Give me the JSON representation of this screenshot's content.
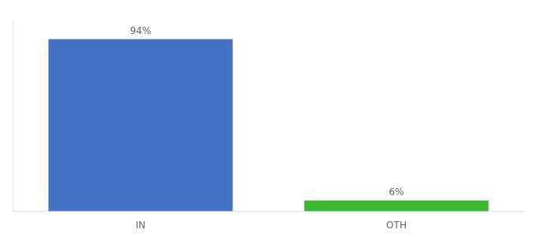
{
  "chart_data": {
    "type": "bar",
    "categories": [
      "IN",
      "OTH"
    ],
    "values": [
      94,
      6
    ],
    "value_labels": [
      "94%",
      "6%"
    ],
    "colors": [
      "#4472c4",
      "#3cb832"
    ],
    "ylim": [
      0,
      105
    ],
    "data_labels": true,
    "tick_labels": "x",
    "grid": false
  }
}
